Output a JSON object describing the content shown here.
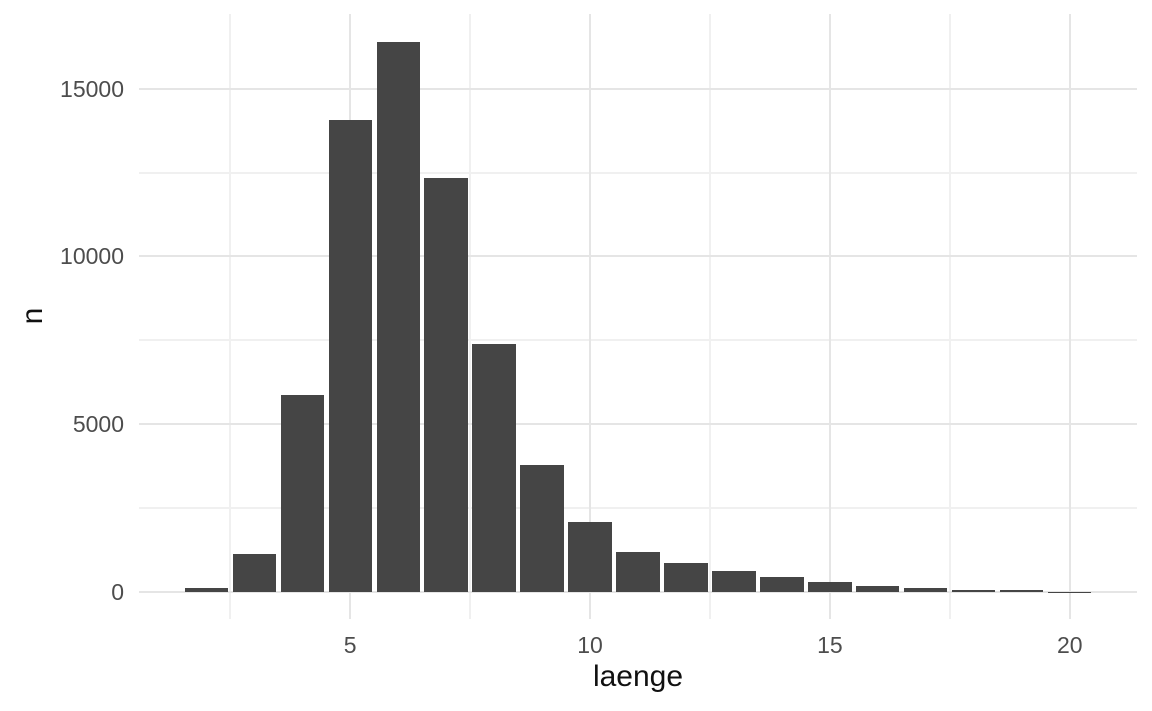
{
  "chart_data": {
    "type": "bar",
    "title": "",
    "xlabel": "laenge",
    "ylabel": "n",
    "categories": [
      2,
      3,
      4,
      5,
      6,
      7,
      8,
      9,
      10,
      11,
      12,
      13,
      14,
      15,
      16,
      17,
      18,
      19,
      20
    ],
    "values": [
      100,
      1130,
      5870,
      14080,
      16400,
      12340,
      7390,
      3790,
      2070,
      1180,
      850,
      610,
      430,
      280,
      175,
      100,
      55,
      45,
      10
    ],
    "x_major_ticks": [
      5,
      10,
      15,
      20
    ],
    "x_minor_gridlines": [
      2.5,
      7.5,
      12.5,
      17.5
    ],
    "y_major_ticks": [
      0,
      5000,
      10000,
      15000
    ],
    "y_minor_gridlines": [
      2500,
      7500,
      12500
    ],
    "xlim": [
      0.6,
      21.4
    ],
    "ylim": [
      -810,
      17230
    ],
    "bar_width_units": 0.9,
    "grid": "on",
    "legend": "none",
    "colors": {
      "bar_fill": "#454545",
      "grid_major": "#e5e5e5",
      "grid_minor": "#f0f0f0",
      "tick_label": "#4d4d4d",
      "axis_title": "#111111",
      "background": "#ffffff"
    }
  }
}
